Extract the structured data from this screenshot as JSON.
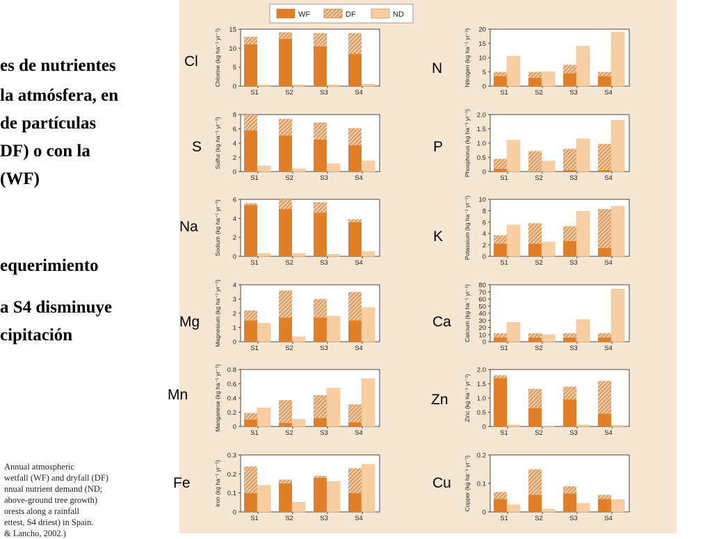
{
  "slide": {
    "lines": [
      "es de nutrientes",
      "la atmósfera, en",
      " de partículas",
      "DF) o con la",
      "(WF)",
      "equerimiento",
      "a S4 disminuye",
      "cipitación"
    ],
    "caption_lines": [
      "Annual atmospheric",
      "wetfall (WF) and dryfall (DF)",
      "nnual nutrient demand (ND;",
      " above-ground tree growth)",
      "orests along a rainfall",
      "ettest, S4 driest) in Spain.",
      "& Lancho, 2002.)"
    ]
  },
  "legend": [
    {
      "key": "WF",
      "label": "WF",
      "color": "#e07f27"
    },
    {
      "key": "DF",
      "label": "DF",
      "color": "#c87a3a"
    },
    {
      "key": "ND",
      "label": "ND",
      "color": "#f7cfa3"
    }
  ],
  "colors": {
    "wf": "#e07f27",
    "df_stripe": "#b5692a",
    "df_bg": "#f0c79b",
    "nd": "#f7cfa3",
    "panel_bg": "#ffffff",
    "figure_bg": "#f7e6d2"
  },
  "chart_data": [
    {
      "type": "bar",
      "symbol": "Cl",
      "ylabel": "Chlorine (kg ha⁻¹ yr⁻¹)",
      "categories": [
        "S1",
        "S2",
        "S3",
        "S4"
      ],
      "ylim": [
        0,
        15
      ],
      "yticks": [
        "0",
        "5",
        "10",
        "15"
      ],
      "series": [
        {
          "name": "WF",
          "values": [
            11,
            12.5,
            10.5,
            8.5
          ]
        },
        {
          "name": "DF",
          "values": [
            2,
            1.7,
            3.5,
            5.5
          ]
        },
        {
          "name": "ND",
          "values": [
            0.3,
            0.3,
            0.3,
            0.5
          ]
        }
      ]
    },
    {
      "type": "bar",
      "symbol": "N",
      "ylabel": "Nitrogen (kg ha⁻¹ yr⁻¹)",
      "categories": [
        "S1",
        "S2",
        "S3",
        "S4"
      ],
      "ylim": [
        0,
        20
      ],
      "yticks": [
        "0",
        "5",
        "10",
        "15",
        "20"
      ],
      "series": [
        {
          "name": "WF",
          "values": [
            3.5,
            3,
            4.5,
            3.5
          ]
        },
        {
          "name": "DF",
          "values": [
            1.5,
            2,
            3,
            1.5
          ]
        },
        {
          "name": "ND",
          "values": [
            10.5,
            5,
            14,
            19
          ]
        }
      ]
    },
    {
      "type": "bar",
      "symbol": "S",
      "ylabel": "Sulfur (kg ha⁻¹ yr⁻¹)",
      "categories": [
        "S1",
        "S2",
        "S3",
        "S4"
      ],
      "ylim": [
        0,
        8
      ],
      "yticks": [
        "0",
        "2",
        "4",
        "6",
        "8"
      ],
      "series": [
        {
          "name": "WF",
          "values": [
            5.8,
            5.1,
            4.5,
            3.7
          ]
        },
        {
          "name": "DF",
          "values": [
            2.2,
            2.3,
            2.4,
            2.4
          ]
        },
        {
          "name": "ND",
          "values": [
            0.8,
            0.4,
            1.1,
            1.5
          ]
        }
      ]
    },
    {
      "type": "bar",
      "symbol": "P",
      "ylabel": "Phosphorus (kg ha⁻¹ yr⁻¹)",
      "categories": [
        "S1",
        "S2",
        "S3",
        "S4"
      ],
      "ylim": [
        0,
        2
      ],
      "yticks": [
        "0",
        "0.5",
        "1.0",
        "1.5",
        "2.0"
      ],
      "series": [
        {
          "name": "WF",
          "values": [
            0.1,
            0,
            0.05,
            0.05
          ]
        },
        {
          "name": "DF",
          "values": [
            0.35,
            0.72,
            0.75,
            0.92
          ]
        },
        {
          "name": "ND",
          "values": [
            1.1,
            0.37,
            1.15,
            1.8
          ]
        }
      ]
    },
    {
      "type": "bar",
      "symbol": "Na",
      "ylabel": "Sodium (kg ha⁻¹ yr⁻¹)",
      "categories": [
        "S1",
        "S2",
        "S3",
        "S4"
      ],
      "ylim": [
        0,
        6
      ],
      "yticks": [
        "0",
        "2",
        "4",
        "6"
      ],
      "series": [
        {
          "name": "WF",
          "values": [
            5.4,
            5,
            4.6,
            3.6
          ]
        },
        {
          "name": "DF",
          "values": [
            0.2,
            1,
            1.1,
            0.3
          ]
        },
        {
          "name": "ND",
          "values": [
            0.3,
            0.3,
            0.2,
            0.5
          ]
        }
      ]
    },
    {
      "type": "bar",
      "symbol": "K",
      "ylabel": "Potassium (kg ha⁻¹ yr⁻¹)",
      "categories": [
        "S1",
        "S2",
        "S3",
        "S4"
      ],
      "ylim": [
        0,
        10
      ],
      "yticks": [
        "0",
        "2",
        "4",
        "6",
        "8",
        "10"
      ],
      "series": [
        {
          "name": "WF",
          "values": [
            2.2,
            2.2,
            2.7,
            1.5
          ]
        },
        {
          "name": "DF",
          "values": [
            1.5,
            3.6,
            2.6,
            6.8
          ]
        },
        {
          "name": "ND",
          "values": [
            5.5,
            2.5,
            7.9,
            8.8
          ]
        }
      ]
    },
    {
      "type": "bar",
      "symbol": "Mg",
      "ylabel": "Magnesium (kg ha⁻¹ yr⁻¹)",
      "categories": [
        "S1",
        "S2",
        "S3",
        "S4"
      ],
      "ylim": [
        0,
        4
      ],
      "yticks": [
        "0",
        "1",
        "2",
        "3",
        "4"
      ],
      "series": [
        {
          "name": "WF",
          "values": [
            1.5,
            1.7,
            1.7,
            1.5
          ]
        },
        {
          "name": "DF",
          "values": [
            0.7,
            1.9,
            1.3,
            2
          ]
        },
        {
          "name": "ND",
          "values": [
            1.3,
            0.35,
            1.8,
            2.4
          ]
        }
      ]
    },
    {
      "type": "bar",
      "symbol": "Ca",
      "ylabel": "Calcium (kg ha⁻¹ yr⁻¹)",
      "categories": [
        "S1",
        "S2",
        "S3",
        "S4"
      ],
      "ylim": [
        0,
        80
      ],
      "yticks": [
        "0",
        "10",
        "20",
        "30",
        "40",
        "50",
        "60",
        "70",
        "80"
      ],
      "series": [
        {
          "name": "WF",
          "values": [
            6,
            6,
            6,
            6
          ]
        },
        {
          "name": "DF",
          "values": [
            6,
            6,
            6,
            6
          ]
        },
        {
          "name": "ND",
          "values": [
            27,
            10,
            31,
            74
          ]
        }
      ]
    },
    {
      "type": "bar",
      "symbol": "Mn",
      "ylabel": "Manganese (kg ha⁻¹ yr⁻¹)",
      "categories": [
        "S1",
        "S2",
        "S3",
        "S4"
      ],
      "ylim": [
        0,
        0.8
      ],
      "yticks": [
        "0",
        "0.2",
        "0.4",
        "0.6",
        "0.8"
      ],
      "series": [
        {
          "name": "WF",
          "values": [
            0.1,
            0.05,
            0.12,
            0.06
          ]
        },
        {
          "name": "DF",
          "values": [
            0.09,
            0.32,
            0.32,
            0.25
          ]
        },
        {
          "name": "ND",
          "values": [
            0.26,
            0.1,
            0.54,
            0.67
          ]
        }
      ]
    },
    {
      "type": "bar",
      "symbol": "Zn",
      "ylabel": "Zinc (kg ha⁻¹ yr⁻¹)",
      "categories": [
        "S1",
        "S2",
        "S3",
        "S4"
      ],
      "ylim": [
        0,
        2
      ],
      "yticks": [
        "0",
        "0.5",
        "1.0",
        "1.5",
        "2.0"
      ],
      "series": [
        {
          "name": "WF",
          "values": [
            1.7,
            0.65,
            0.95,
            0.45
          ]
        },
        {
          "name": "DF",
          "values": [
            0.1,
            0.67,
            0.45,
            1.15
          ]
        },
        {
          "name": "ND",
          "values": [
            0.05,
            0.02,
            0.05,
            0.04
          ]
        }
      ]
    },
    {
      "type": "bar",
      "symbol": "Fe",
      "ylabel": "Iron (kg ha⁻¹ yr⁻¹)",
      "categories": [
        "S1",
        "S2",
        "S3",
        "S4"
      ],
      "ylim": [
        0,
        0.3
      ],
      "yticks": [
        "0",
        "0.1",
        "0.2",
        "0.3"
      ],
      "series": [
        {
          "name": "WF",
          "values": [
            0.1,
            0.15,
            0.18,
            0.1
          ]
        },
        {
          "name": "DF",
          "values": [
            0.14,
            0.02,
            0.01,
            0.13
          ]
        },
        {
          "name": "ND",
          "values": [
            0.14,
            0.05,
            0.16,
            0.25
          ]
        }
      ]
    },
    {
      "type": "bar",
      "symbol": "Cu",
      "ylabel": "Copper (kg ha⁻¹ yr⁻¹)",
      "categories": [
        "S1",
        "S2",
        "S3",
        "S4"
      ],
      "ylim": [
        0,
        0.2
      ],
      "yticks": [
        "0",
        "0.1",
        "0.2"
      ],
      "series": [
        {
          "name": "WF",
          "values": [
            0.045,
            0.06,
            0.065,
            0.045
          ]
        },
        {
          "name": "DF",
          "values": [
            0.025,
            0.09,
            0.025,
            0.015
          ]
        },
        {
          "name": "ND",
          "values": [
            0.025,
            0.01,
            0.03,
            0.043
          ]
        }
      ]
    }
  ]
}
